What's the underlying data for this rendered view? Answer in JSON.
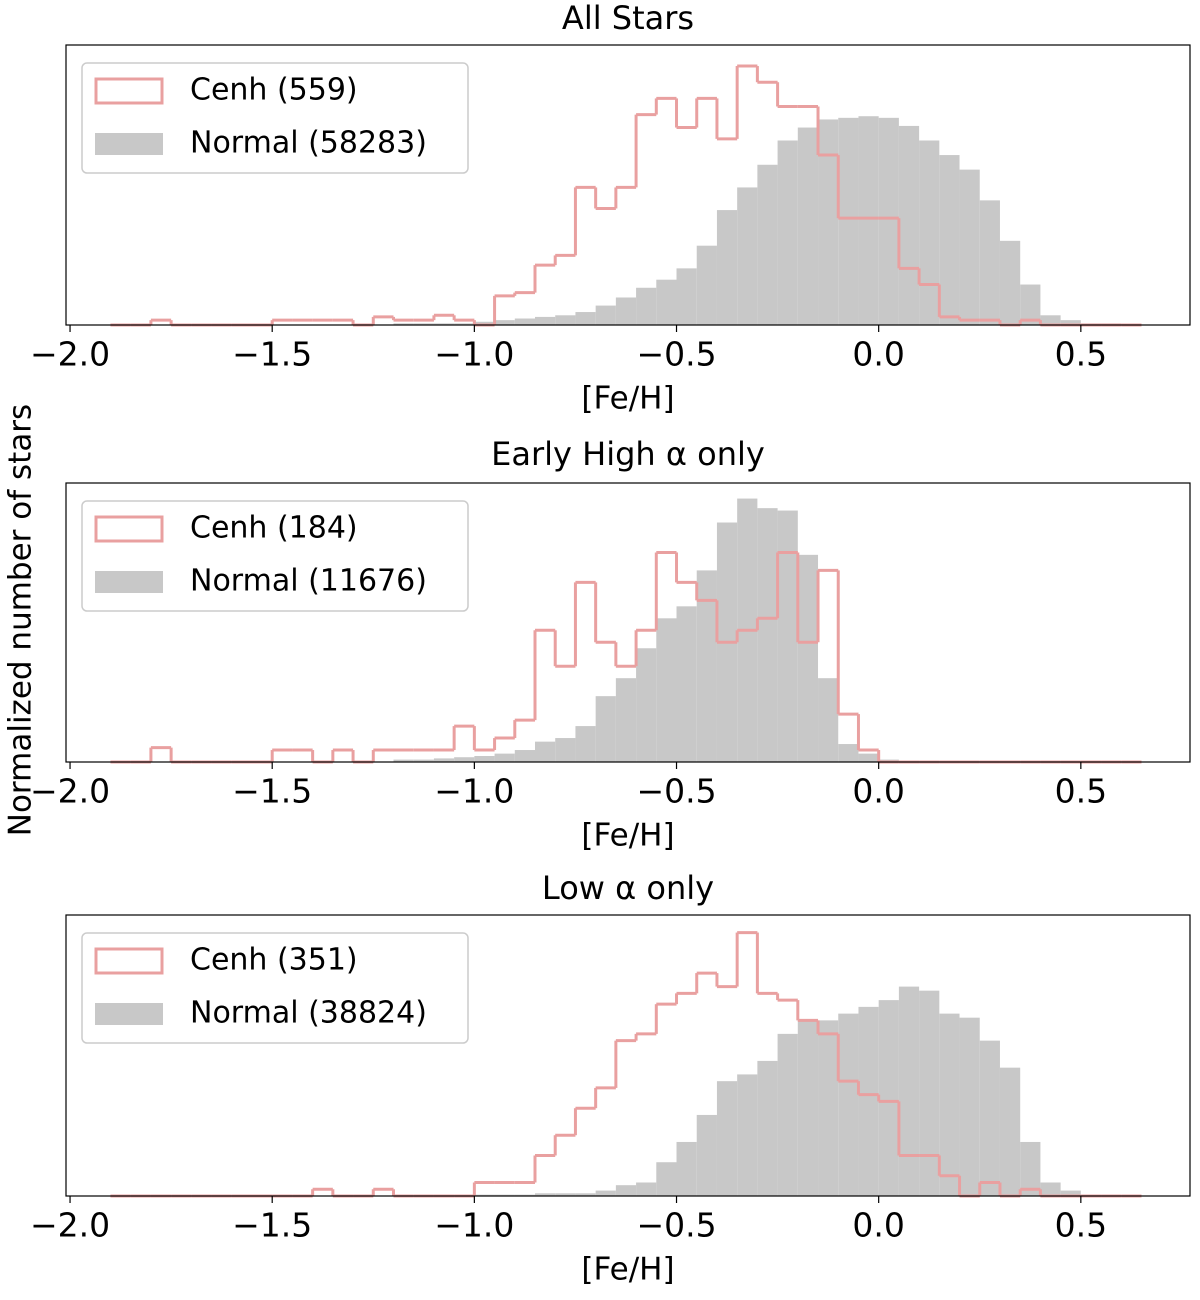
{
  "chart_data": [
    {
      "type": "histogram",
      "title": "All Stars",
      "xlabel": "[Fe/H]",
      "ylabel": "Normalized number of stars",
      "xlim": [
        -2.01,
        0.77
      ],
      "ylim": [
        0,
        1.73
      ],
      "xticks": [
        {
          "value": -2,
          "label": "−2.0"
        },
        {
          "value": -1.5,
          "label": "−1.5"
        },
        {
          "value": -1,
          "label": "−1.0"
        },
        {
          "value": -0.5,
          "label": "−0.5"
        },
        {
          "value": 0,
          "label": "0.0"
        },
        {
          "value": 0.5,
          "label": "0.5"
        }
      ],
      "bins": [
        -1.9,
        -1.85,
        -1.8,
        -1.75,
        -1.7,
        -1.65,
        -1.6,
        -1.55,
        -1.5,
        -1.45,
        -1.4,
        -1.35,
        -1.3,
        -1.25,
        -1.2,
        -1.15,
        -1.1,
        -1.05,
        -1.0,
        -0.95,
        -0.9,
        -0.85,
        -0.8,
        -0.75,
        -0.7,
        -0.65,
        -0.6,
        -0.55,
        -0.5,
        -0.45,
        -0.4,
        -0.35,
        -0.3,
        -0.25,
        -0.2,
        -0.15,
        -0.1,
        -0.05,
        0,
        0.05,
        0.1,
        0.15,
        0.2,
        0.25,
        0.3,
        0.35,
        0.4,
        0.45,
        0.5,
        0.55,
        0.6,
        0.65
      ],
      "series": [
        {
          "name": "Cenh (559)",
          "color": "#e9a0a0",
          "style": "step",
          "values": [
            0,
            0,
            0.03,
            0,
            0,
            0,
            0,
            0,
            0.03,
            0.03,
            0.03,
            0.03,
            0,
            0.05,
            0.03,
            0.03,
            0.06,
            0.03,
            0,
            0.18,
            0.2,
            0.37,
            0.43,
            0.85,
            0.72,
            0.85,
            1.3,
            1.4,
            1.22,
            1.4,
            1.15,
            1.6,
            1.5,
            1.35,
            1.35,
            1.05,
            0.66,
            0.66,
            0.66,
            0.35,
            0.25,
            0.05,
            0.03,
            0.03,
            0,
            0.03,
            0,
            0,
            0,
            0,
            0
          ]
        },
        {
          "name": "Normal (58283)",
          "color": "#c8c8c8",
          "style": "filled",
          "values": [
            0,
            0,
            0,
            0,
            0,
            0,
            0,
            0,
            0,
            0,
            0,
            0,
            0,
            0,
            0.01,
            0.01,
            0.01,
            0.01,
            0.02,
            0.03,
            0.04,
            0.05,
            0.06,
            0.08,
            0.12,
            0.17,
            0.23,
            0.28,
            0.35,
            0.49,
            0.71,
            0.85,
            0.99,
            1.14,
            1.22,
            1.27,
            1.28,
            1.29,
            1.28,
            1.23,
            1.14,
            1.05,
            0.96,
            0.77,
            0.52,
            0.25,
            0.06,
            0.03,
            0.01,
            0.01,
            0
          ]
        }
      ]
    },
    {
      "type": "histogram",
      "title": "Early High α only",
      "xlabel": "[Fe/H]",
      "xlim": [
        -2.01,
        0.77
      ],
      "ylim": [
        0,
        2.33
      ],
      "xticks": [
        {
          "value": -2,
          "label": "−2.0"
        },
        {
          "value": -1.5,
          "label": "−1.5"
        },
        {
          "value": -1,
          "label": "−1.0"
        },
        {
          "value": -0.5,
          "label": "−0.5"
        },
        {
          "value": 0,
          "label": "0.0"
        },
        {
          "value": 0.5,
          "label": "0.5"
        }
      ],
      "bins": [
        -1.9,
        -1.85,
        -1.8,
        -1.75,
        -1.7,
        -1.65,
        -1.6,
        -1.55,
        -1.5,
        -1.45,
        -1.4,
        -1.35,
        -1.3,
        -1.25,
        -1.2,
        -1.15,
        -1.1,
        -1.05,
        -1.0,
        -0.95,
        -0.9,
        -0.85,
        -0.8,
        -0.75,
        -0.7,
        -0.65,
        -0.6,
        -0.55,
        -0.5,
        -0.45,
        -0.4,
        -0.35,
        -0.3,
        -0.25,
        -0.2,
        -0.15,
        -0.1,
        -0.05,
        0,
        0.05,
        0.1,
        0.15,
        0.2,
        0.25,
        0.3,
        0.35,
        0.4,
        0.45,
        0.5,
        0.55,
        0.6,
        0.65
      ],
      "series": [
        {
          "name": "Cenh (184)",
          "color": "#e9a0a0",
          "style": "step",
          "values": [
            0,
            0,
            0.12,
            0,
            0,
            0,
            0,
            0,
            0.1,
            0.1,
            0,
            0.1,
            0,
            0.1,
            0.1,
            0.1,
            0.1,
            0.3,
            0.1,
            0.2,
            0.35,
            1.1,
            0.8,
            1.5,
            1.0,
            0.8,
            1.1,
            1.75,
            1.5,
            1.35,
            1.0,
            1.1,
            1.2,
            1.75,
            1.0,
            1.6,
            0.4,
            0.1,
            0,
            0,
            0,
            0,
            0,
            0,
            0,
            0,
            0,
            0,
            0,
            0,
            0
          ]
        },
        {
          "name": "Normal (11676)",
          "color": "#c8c8c8",
          "style": "filled",
          "values": [
            0,
            0,
            0,
            0,
            0,
            0,
            0,
            0,
            0,
            0,
            0,
            0,
            0,
            0,
            0.02,
            0.02,
            0.03,
            0.04,
            0.05,
            0.07,
            0.1,
            0.17,
            0.2,
            0.3,
            0.55,
            0.7,
            0.95,
            1.2,
            1.3,
            1.6,
            2.0,
            2.2,
            2.12,
            2.1,
            1.73,
            0.7,
            0.15,
            0.07,
            0.02,
            0,
            0,
            0,
            0,
            0,
            0,
            0,
            0,
            0,
            0,
            0,
            0
          ]
        }
      ]
    },
    {
      "type": "histogram",
      "title": "Low α only",
      "xlabel": "[Fe/H]",
      "xlim": [
        -2.01,
        0.77
      ],
      "ylim": [
        0,
        2.08
      ],
      "xticks": [
        {
          "value": -2,
          "label": "−2.0"
        },
        {
          "value": -1.5,
          "label": "−1.5"
        },
        {
          "value": -1,
          "label": "−1.0"
        },
        {
          "value": -0.5,
          "label": "−0.5"
        },
        {
          "value": 0,
          "label": "0.0"
        },
        {
          "value": 0.5,
          "label": "0.5"
        }
      ],
      "bins": [
        -1.9,
        -1.85,
        -1.8,
        -1.75,
        -1.7,
        -1.65,
        -1.6,
        -1.55,
        -1.5,
        -1.45,
        -1.4,
        -1.35,
        -1.3,
        -1.25,
        -1.2,
        -1.15,
        -1.1,
        -1.05,
        -1.0,
        -0.95,
        -0.9,
        -0.85,
        -0.8,
        -0.75,
        -0.7,
        -0.65,
        -0.6,
        -0.55,
        -0.5,
        -0.45,
        -0.4,
        -0.35,
        -0.3,
        -0.25,
        -0.2,
        -0.15,
        -0.1,
        -0.05,
        0,
        0.05,
        0.1,
        0.15,
        0.2,
        0.25,
        0.3,
        0.35,
        0.4,
        0.45,
        0.5,
        0.55,
        0.6,
        0.65
      ],
      "series": [
        {
          "name": "Cenh (351)",
          "color": "#e9a0a0",
          "style": "step",
          "values": [
            0,
            0,
            0,
            0,
            0,
            0,
            0,
            0,
            0,
            0,
            0.05,
            0,
            0,
            0.05,
            0,
            0,
            0,
            0,
            0.1,
            0.1,
            0.1,
            0.3,
            0.45,
            0.65,
            0.8,
            1.15,
            1.2,
            1.42,
            1.5,
            1.65,
            1.55,
            1.95,
            1.5,
            1.45,
            1.3,
            1.2,
            0.85,
            0.75,
            0.7,
            0.3,
            0.3,
            0.15,
            0,
            0.1,
            0,
            0.05,
            0,
            0,
            0,
            0,
            0
          ]
        },
        {
          "name": "Normal (38824)",
          "color": "#c8c8c8",
          "style": "filled",
          "values": [
            0,
            0,
            0,
            0,
            0,
            0,
            0,
            0,
            0,
            0,
            0,
            0,
            0,
            0,
            0,
            0,
            0,
            0.01,
            0.01,
            0.01,
            0.01,
            0.02,
            0.02,
            0.02,
            0.04,
            0.08,
            0.1,
            0.25,
            0.4,
            0.6,
            0.85,
            0.9,
            1.0,
            1.2,
            1.3,
            1.3,
            1.35,
            1.4,
            1.45,
            1.55,
            1.52,
            1.35,
            1.32,
            1.15,
            0.95,
            0.4,
            0.1,
            0.04,
            0.01,
            0,
            0
          ]
        }
      ]
    }
  ]
}
